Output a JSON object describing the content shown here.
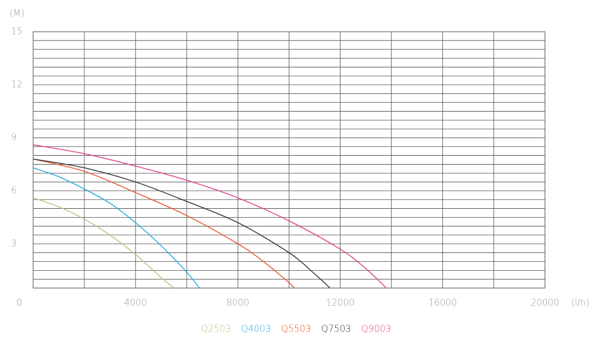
{
  "chart_data": {
    "type": "line",
    "y_unit": "(M)",
    "x_unit": "(l/h)",
    "xlim": [
      0,
      20000
    ],
    "ylim": [
      0.5,
      15
    ],
    "xticks": [
      0,
      4000,
      8000,
      12000,
      16000,
      20000
    ],
    "yticks": [
      3,
      6,
      9,
      12,
      15
    ],
    "xminorticks": [
      2000,
      6000,
      10000,
      14000,
      18000
    ],
    "yminorticks": [
      0.5,
      1,
      1.5,
      2,
      2.5,
      3.5,
      4,
      4.5,
      5,
      5.5,
      6.5,
      7,
      7.5,
      8,
      8.5,
      9.5,
      10,
      10.5,
      11,
      11.5,
      12.5,
      13,
      13.5,
      14,
      14.5
    ],
    "grid": true,
    "series": [
      {
        "name": "Q2503",
        "color": "#b3c687",
        "x": [
          0,
          1000,
          2000,
          3000,
          4000,
          5000,
          5500
        ],
        "values": [
          5.6,
          5.1,
          4.4,
          3.5,
          2.4,
          1.1,
          0.5
        ]
      },
      {
        "name": "Q4003",
        "color": "#26a9e0",
        "x": [
          0,
          1000,
          2000,
          3000,
          4000,
          5000,
          6000,
          6500
        ],
        "values": [
          7.3,
          6.8,
          6.1,
          5.3,
          4.2,
          2.9,
          1.4,
          0.5
        ]
      },
      {
        "name": "Q5503",
        "color": "#e8502a",
        "x": [
          0,
          2000,
          4000,
          6000,
          8000,
          9000,
          10000,
          10200
        ],
        "values": [
          7.8,
          7.1,
          5.9,
          4.6,
          3.0,
          2.0,
          0.8,
          0.5
        ]
      },
      {
        "name": "Q7503",
        "color": "#333333",
        "x": [
          0,
          2000,
          4000,
          6000,
          8000,
          10000,
          11000,
          11600
        ],
        "values": [
          7.8,
          7.3,
          6.5,
          5.4,
          4.2,
          2.5,
          1.3,
          0.5
        ]
      },
      {
        "name": "Q9003",
        "color": "#e0408a",
        "x": [
          0,
          2000,
          4000,
          6000,
          8000,
          10000,
          12000,
          13000,
          13800
        ],
        "values": [
          8.6,
          8.1,
          7.4,
          6.6,
          5.6,
          4.3,
          2.7,
          1.6,
          0.5
        ]
      }
    ]
  }
}
